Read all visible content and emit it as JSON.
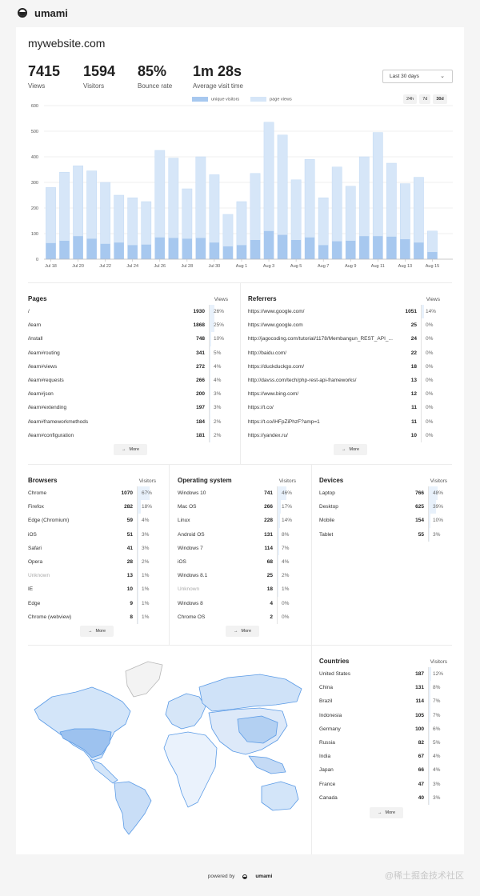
{
  "app": {
    "name": "umami"
  },
  "site": {
    "title": "mywebsite.com"
  },
  "metrics": [
    {
      "value": "7415",
      "label": "Views"
    },
    {
      "value": "1594",
      "label": "Visitors"
    },
    {
      "value": "85%",
      "label": "Bounce rate"
    },
    {
      "value": "1m 28s",
      "label": "Average visit time"
    }
  ],
  "date_range": {
    "selected": "Last 30 days",
    "buttons": [
      "24h",
      "7d",
      "30d"
    ],
    "active": "30d"
  },
  "colors": {
    "unique_visitors": "#a7c8ef",
    "page_views": "#d6e6f8",
    "fill": "#e8f1fb"
  },
  "chart_data": {
    "type": "bar",
    "legend": [
      "unique visitors",
      "page views"
    ],
    "legend_position": "top",
    "ylim": [
      0,
      600
    ],
    "yticks": [
      0,
      100,
      200,
      300,
      400,
      500,
      600
    ],
    "grid": true,
    "categories": [
      "Jul 18",
      "Jul 19",
      "Jul 20",
      "Jul 21",
      "Jul 22",
      "Jul 23",
      "Jul 24",
      "Jul 25",
      "Jul 26",
      "Jul 27",
      "Jul 28",
      "Jul 29",
      "Jul 30",
      "Jul 31",
      "Aug 1",
      "Aug 2",
      "Aug 3",
      "Aug 4",
      "Aug 5",
      "Aug 6",
      "Aug 7",
      "Aug 8",
      "Aug 9",
      "Aug 10",
      "Aug 11",
      "Aug 12",
      "Aug 13",
      "Aug 14",
      "Aug 15",
      "Aug 16"
    ],
    "xtick_labels": [
      "Jul 18",
      "Jul 20",
      "Jul 22",
      "Jul 24",
      "Jul 26",
      "Jul 28",
      "Jul 30",
      "Aug 1",
      "Aug 3",
      "Aug 5",
      "Aug 7",
      "Aug 9",
      "Aug 11",
      "Aug 13",
      "Aug 15"
    ],
    "series": [
      {
        "name": "unique visitors",
        "values": [
          63,
          72,
          90,
          80,
          60,
          65,
          55,
          57,
          85,
          83,
          80,
          83,
          65,
          50,
          55,
          75,
          110,
          95,
          75,
          85,
          55,
          70,
          72,
          90,
          90,
          88,
          78,
          65,
          28,
          0
        ]
      },
      {
        "name": "page views",
        "values": [
          280,
          340,
          365,
          345,
          300,
          250,
          240,
          225,
          425,
          395,
          275,
          400,
          330,
          175,
          225,
          335,
          535,
          485,
          310,
          390,
          240,
          360,
          285,
          400,
          495,
          375,
          295,
          320,
          110,
          0
        ]
      }
    ]
  },
  "pages": {
    "title": "Pages",
    "metric": "Views",
    "more": "More",
    "rows": [
      {
        "label": "/",
        "value": "1930",
        "pct": "26%",
        "p": 26
      },
      {
        "label": "/learn",
        "value": "1868",
        "pct": "25%",
        "p": 25
      },
      {
        "label": "/install",
        "value": "748",
        "pct": "10%",
        "p": 10
      },
      {
        "label": "/learn#routing",
        "value": "341",
        "pct": "5%",
        "p": 5
      },
      {
        "label": "/learn#views",
        "value": "272",
        "pct": "4%",
        "p": 4
      },
      {
        "label": "/learn#requests",
        "value": "266",
        "pct": "4%",
        "p": 4
      },
      {
        "label": "/learn#json",
        "value": "200",
        "pct": "3%",
        "p": 3
      },
      {
        "label": "/learn#extending",
        "value": "197",
        "pct": "3%",
        "p": 3
      },
      {
        "label": "/learn#frameworkmethods",
        "value": "184",
        "pct": "2%",
        "p": 2
      },
      {
        "label": "/learn#configuration",
        "value": "181",
        "pct": "2%",
        "p": 2
      }
    ]
  },
  "referrers": {
    "title": "Referrers",
    "metric": "Views",
    "more": "More",
    "rows": [
      {
        "label": "https://www.google.com/",
        "value": "1051",
        "pct": "14%",
        "p": 14
      },
      {
        "label": "https://www.google.com",
        "value": "25",
        "pct": "0%",
        "p": 0
      },
      {
        "label": "http://jagocoding.com/tutorial/1178/Membangun_REST_API_...",
        "value": "24",
        "pct": "0%",
        "p": 0
      },
      {
        "label": "http://baidu.com/",
        "value": "22",
        "pct": "0%",
        "p": 0
      },
      {
        "label": "https://duckduckgo.com/",
        "value": "18",
        "pct": "0%",
        "p": 0
      },
      {
        "label": "http://davss.com/tech/php-rest-api-frameworks/",
        "value": "13",
        "pct": "0%",
        "p": 0
      },
      {
        "label": "https://www.bing.com/",
        "value": "12",
        "pct": "0%",
        "p": 0
      },
      {
        "label": "https://t.co/",
        "value": "11",
        "pct": "0%",
        "p": 0
      },
      {
        "label": "https://t.co/iHFpZiPhzF?amp=1",
        "value": "11",
        "pct": "0%",
        "p": 0
      },
      {
        "label": "https://yandex.ru/",
        "value": "10",
        "pct": "0%",
        "p": 0
      }
    ]
  },
  "browsers": {
    "title": "Browsers",
    "metric": "Visitors",
    "more": "More",
    "rows": [
      {
        "label": "Chrome",
        "value": "1070",
        "pct": "67%",
        "p": 67
      },
      {
        "label": "Firefox",
        "value": "282",
        "pct": "18%",
        "p": 18
      },
      {
        "label": "Edge (Chromium)",
        "value": "59",
        "pct": "4%",
        "p": 4
      },
      {
        "label": "iOS",
        "value": "51",
        "pct": "3%",
        "p": 3
      },
      {
        "label": "Safari",
        "value": "41",
        "pct": "3%",
        "p": 3
      },
      {
        "label": "Opera",
        "value": "28",
        "pct": "2%",
        "p": 2
      },
      {
        "label": "Unknown",
        "value": "13",
        "pct": "1%",
        "p": 1,
        "dim": true
      },
      {
        "label": "IE",
        "value": "10",
        "pct": "1%",
        "p": 1
      },
      {
        "label": "Edge",
        "value": "9",
        "pct": "1%",
        "p": 1
      },
      {
        "label": "Chrome (webview)",
        "value": "8",
        "pct": "1%",
        "p": 1
      }
    ]
  },
  "os": {
    "title": "Operating system",
    "metric": "Visitors",
    "more": "More",
    "rows": [
      {
        "label": "Windows 10",
        "value": "741",
        "pct": "46%",
        "p": 46
      },
      {
        "label": "Mac OS",
        "value": "266",
        "pct": "17%",
        "p": 17
      },
      {
        "label": "Linux",
        "value": "228",
        "pct": "14%",
        "p": 14
      },
      {
        "label": "Android OS",
        "value": "131",
        "pct": "8%",
        "p": 8
      },
      {
        "label": "Windows 7",
        "value": "114",
        "pct": "7%",
        "p": 7
      },
      {
        "label": "iOS",
        "value": "68",
        "pct": "4%",
        "p": 4
      },
      {
        "label": "Windows 8.1",
        "value": "25",
        "pct": "2%",
        "p": 2
      },
      {
        "label": "Unknown",
        "value": "18",
        "pct": "1%",
        "p": 1,
        "dim": true
      },
      {
        "label": "Windows 8",
        "value": "4",
        "pct": "0%",
        "p": 0
      },
      {
        "label": "Chrome OS",
        "value": "2",
        "pct": "0%",
        "p": 0
      }
    ]
  },
  "devices": {
    "title": "Devices",
    "metric": "Visitors",
    "rows": [
      {
        "label": "Laptop",
        "value": "766",
        "pct": "48%",
        "p": 48
      },
      {
        "label": "Desktop",
        "value": "625",
        "pct": "39%",
        "p": 39
      },
      {
        "label": "Mobile",
        "value": "154",
        "pct": "10%",
        "p": 10
      },
      {
        "label": "Tablet",
        "value": "55",
        "pct": "3%",
        "p": 3
      }
    ]
  },
  "countries": {
    "title": "Countries",
    "metric": "Visitors",
    "more": "More",
    "rows": [
      {
        "label": "United States",
        "value": "187",
        "pct": "12%",
        "p": 12
      },
      {
        "label": "China",
        "value": "131",
        "pct": "8%",
        "p": 8
      },
      {
        "label": "Brazil",
        "value": "114",
        "pct": "7%",
        "p": 7
      },
      {
        "label": "Indonesia",
        "value": "105",
        "pct": "7%",
        "p": 7
      },
      {
        "label": "Germany",
        "value": "100",
        "pct": "6%",
        "p": 6
      },
      {
        "label": "Russia",
        "value": "82",
        "pct": "5%",
        "p": 5
      },
      {
        "label": "India",
        "value": "67",
        "pct": "4%",
        "p": 4
      },
      {
        "label": "Japan",
        "value": "66",
        "pct": "4%",
        "p": 4
      },
      {
        "label": "France",
        "value": "47",
        "pct": "3%",
        "p": 3
      },
      {
        "label": "Canada",
        "value": "40",
        "pct": "3%",
        "p": 3
      }
    ]
  },
  "footer": {
    "text": "powered by",
    "brand": "umami"
  },
  "watermark": "@稀土掘金技术社区"
}
